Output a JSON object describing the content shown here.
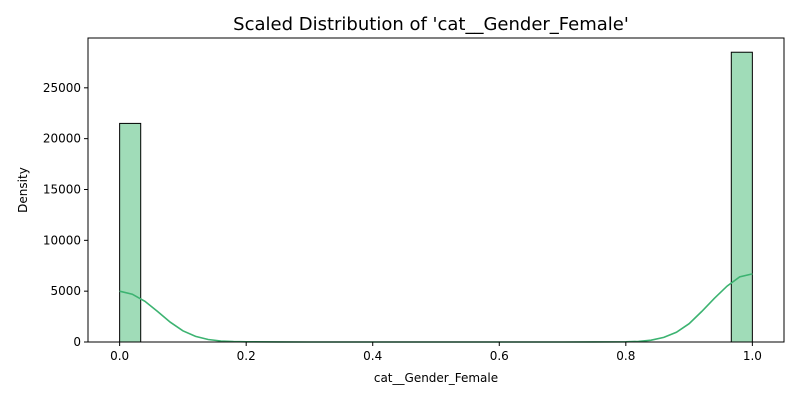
{
  "chart_data": {
    "type": "bar",
    "title": "Scaled Distribution of 'cat__Gender_Female'",
    "xlabel": "cat__Gender_Female",
    "ylabel": "Density",
    "xlim": [
      -0.05,
      1.05
    ],
    "ylim": [
      0,
      29900
    ],
    "x_ticks": [
      0.0,
      0.2,
      0.4,
      0.6,
      0.8,
      1.0
    ],
    "x_tick_labels": [
      "0.0",
      "0.2",
      "0.4",
      "0.6",
      "0.8",
      "1.0"
    ],
    "y_ticks": [
      0,
      5000,
      10000,
      15000,
      20000,
      25000
    ],
    "y_tick_labels": [
      "0",
      "5000",
      "10000",
      "15000",
      "20000",
      "25000"
    ],
    "grid": false,
    "bins": [
      {
        "x0": 0.0,
        "x1": 0.0333,
        "value": 21500
      },
      {
        "x0": 0.9667,
        "x1": 1.0,
        "value": 28500
      }
    ],
    "kde": {
      "x": [
        0.0,
        0.02,
        0.04,
        0.06,
        0.08,
        0.1,
        0.12,
        0.14,
        0.16,
        0.18,
        0.2,
        0.25,
        0.3,
        0.4,
        0.5,
        0.6,
        0.7,
        0.75,
        0.8,
        0.82,
        0.84,
        0.86,
        0.88,
        0.9,
        0.92,
        0.94,
        0.96,
        0.98,
        1.0
      ],
      "y": [
        5000,
        4700,
        4000,
        3000,
        1950,
        1100,
        550,
        250,
        100,
        40,
        15,
        5,
        2,
        0,
        0,
        0,
        2,
        5,
        20,
        60,
        180,
        450,
        950,
        1800,
        3000,
        4300,
        5500,
        6400,
        6700
      ]
    },
    "colors": {
      "bar_fill": "#a0dcb8",
      "bar_edge": "#000000",
      "kde_line": "#3cb371"
    }
  }
}
